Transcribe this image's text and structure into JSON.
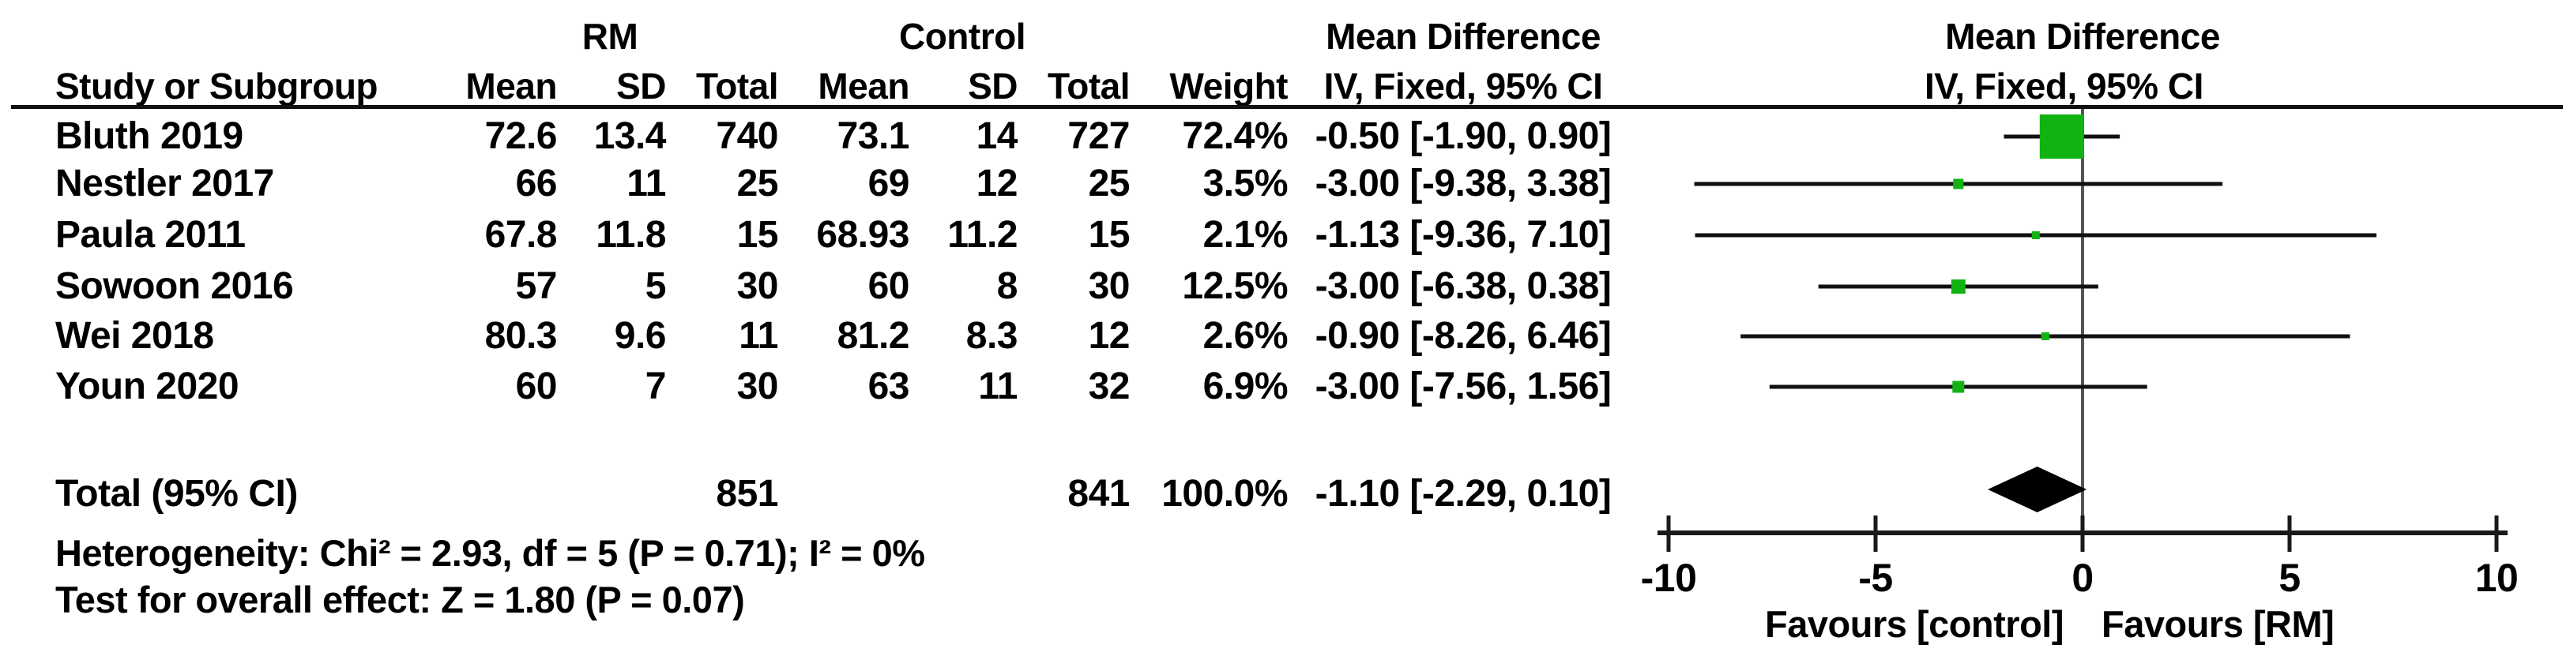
{
  "groups": {
    "rm": "RM",
    "control": "Control",
    "md_left": "Mean Difference",
    "md_right": "Mean Difference"
  },
  "columns": {
    "study": "Study or Subgroup",
    "mean": "Mean",
    "sd": "SD",
    "total": "Total",
    "weight": "Weight",
    "ci": "IV, Fixed, 95% CI"
  },
  "studies": [
    {
      "name": "Bluth 2019",
      "rm_mean": "72.6",
      "rm_sd": "13.4",
      "rm_total": "740",
      "c_mean": "73.1",
      "c_sd": "14",
      "c_total": "727",
      "weight": "72.4%",
      "ci": "-0.50 [-1.90, 0.90]"
    },
    {
      "name": "Nestler 2017",
      "rm_mean": "66",
      "rm_sd": "11",
      "rm_total": "25",
      "c_mean": "69",
      "c_sd": "12",
      "c_total": "25",
      "weight": "3.5%",
      "ci": "-3.00 [-9.38, 3.38]"
    },
    {
      "name": "Paula 2011",
      "rm_mean": "67.8",
      "rm_sd": "11.8",
      "rm_total": "15",
      "c_mean": "68.93",
      "c_sd": "11.2",
      "c_total": "15",
      "weight": "2.1%",
      "ci": "-1.13 [-9.36, 7.10]"
    },
    {
      "name": "Sowoon 2016",
      "rm_mean": "57",
      "rm_sd": "5",
      "rm_total": "30",
      "c_mean": "60",
      "c_sd": "8",
      "c_total": "30",
      "weight": "12.5%",
      "ci": "-3.00 [-6.38, 0.38]"
    },
    {
      "name": "Wei 2018",
      "rm_mean": "80.3",
      "rm_sd": "9.6",
      "rm_total": "11",
      "c_mean": "81.2",
      "c_sd": "8.3",
      "c_total": "12",
      "weight": "2.6%",
      "ci": "-0.90 [-8.26, 6.46]"
    },
    {
      "name": "Youn 2020",
      "rm_mean": "60",
      "rm_sd": "7",
      "rm_total": "30",
      "c_mean": "63",
      "c_sd": "11",
      "c_total": "32",
      "weight": "6.9%",
      "ci": "-3.00 [-7.56, 1.56]"
    }
  ],
  "total_row": {
    "label": "Total (95% CI)",
    "rm_total": "851",
    "c_total": "841",
    "weight": "100.0%",
    "ci": "-1.10 [-2.29, 0.10]"
  },
  "footer": {
    "heterogeneity": "Heterogeneity: Chi² = 2.93, df = 5 (P = 0.71); I² = 0%",
    "overall_effect": "Test for overall effect: Z = 1.80 (P = 0.07)"
  },
  "axis": {
    "tick_labels": [
      "-10",
      "-5",
      "0",
      "5",
      "10"
    ],
    "favours_left": "Favours [control]",
    "favours_right": "Favours [RM]"
  },
  "colors": {
    "square_green": "#12b212",
    "diamond_black": "#000000",
    "ci_line": "#111111",
    "zero_line": "#555555",
    "axis_line": "#1a1a1a"
  },
  "chart_data": {
    "type": "scatter",
    "title": "Mean Difference  IV, Fixed, 95% CI (forest plot)",
    "xlabel": "Favours [control] | Favours [RM]",
    "xlim": [
      -10,
      10
    ],
    "xticks": [
      -10,
      -5,
      0,
      5,
      10
    ],
    "grid": false,
    "series": [
      {
        "name": "Bluth 2019",
        "md": -0.5,
        "ci_low": -1.9,
        "ci_high": 0.9,
        "weight_pct": 72.4
      },
      {
        "name": "Nestler 2017",
        "md": -3.0,
        "ci_low": -9.38,
        "ci_high": 3.38,
        "weight_pct": 3.5
      },
      {
        "name": "Paula 2011",
        "md": -1.13,
        "ci_low": -9.36,
        "ci_high": 7.1,
        "weight_pct": 2.1
      },
      {
        "name": "Sowoon 2016",
        "md": -3.0,
        "ci_low": -6.38,
        "ci_high": 0.38,
        "weight_pct": 12.5
      },
      {
        "name": "Wei 2018",
        "md": -0.9,
        "ci_low": -8.26,
        "ci_high": 6.46,
        "weight_pct": 2.6
      },
      {
        "name": "Youn 2020",
        "md": -3.0,
        "ci_low": -7.56,
        "ci_high": 1.56,
        "weight_pct": 6.9
      }
    ],
    "total": {
      "name": "Total (95% CI)",
      "md": -1.1,
      "ci_low": -2.29,
      "ci_high": 0.1,
      "weight_pct": 100.0
    },
    "heterogeneity": {
      "chi2": 2.93,
      "df": 5,
      "p": 0.71,
      "i2_pct": 0
    },
    "overall_effect": {
      "z": 1.8,
      "p": 0.07
    }
  }
}
